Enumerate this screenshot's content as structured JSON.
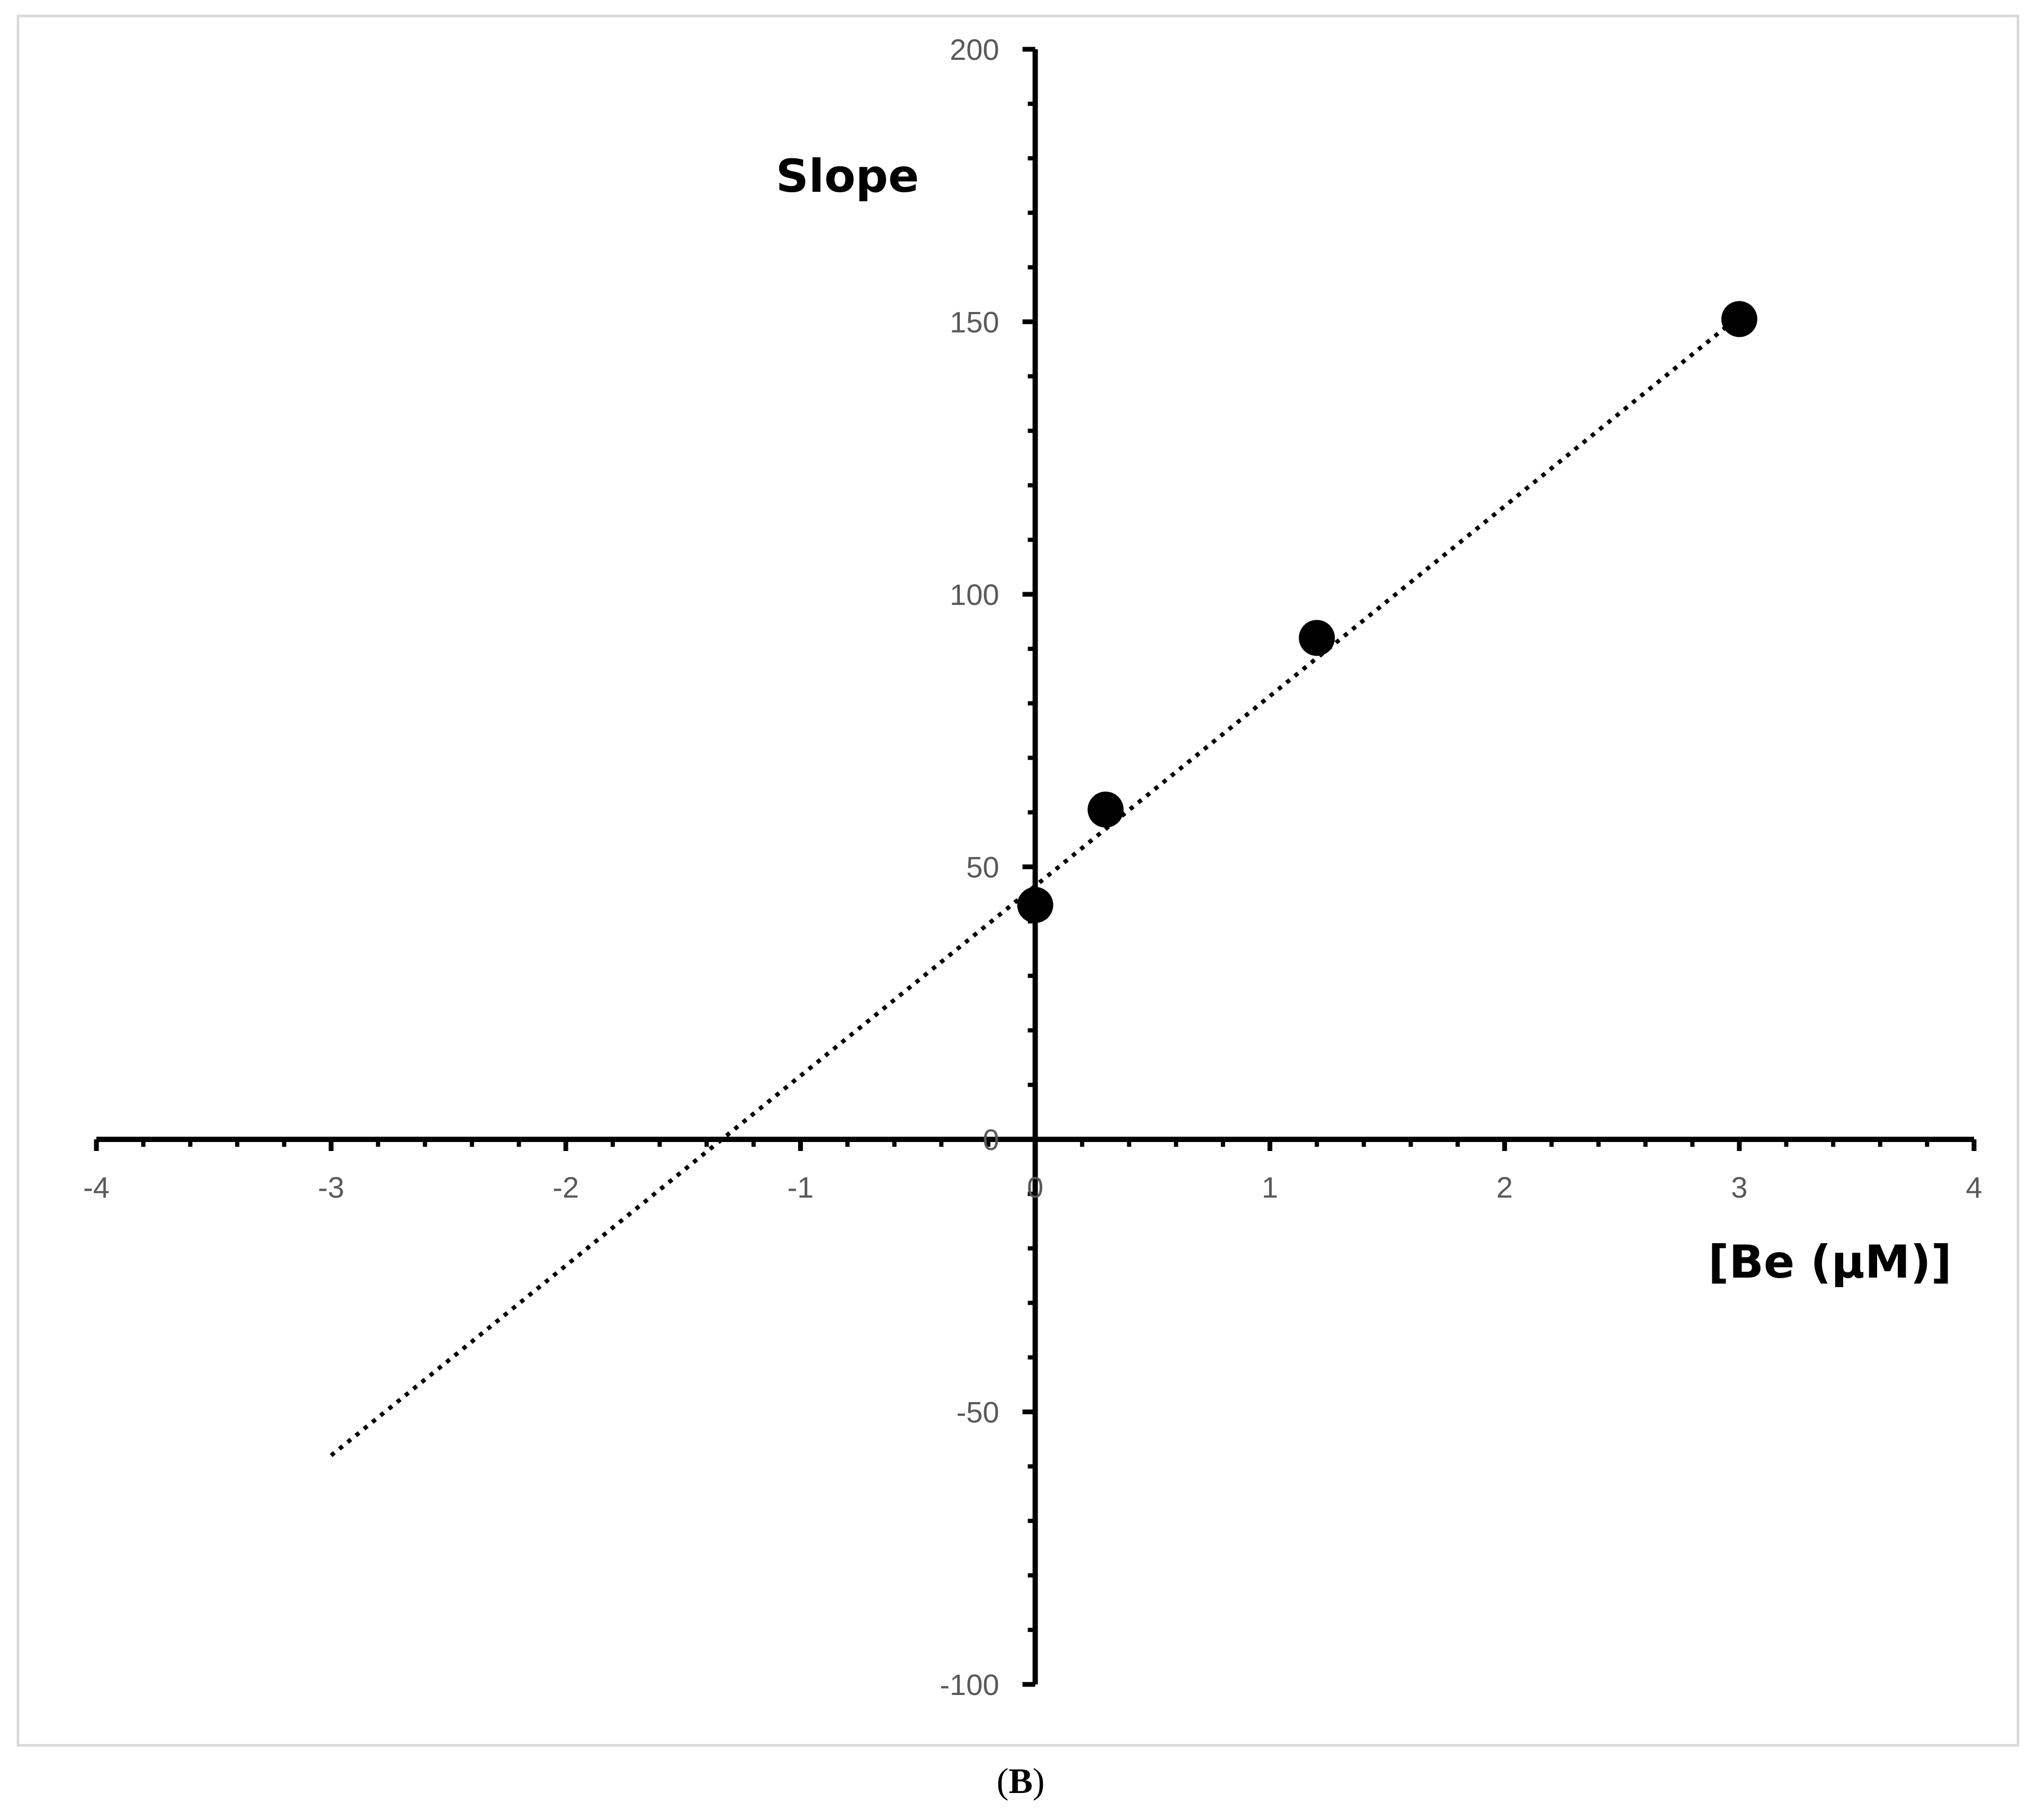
{
  "chart_data": {
    "type": "scatter",
    "xlabel": "[Be (µM)]",
    "ylabel": "Slope",
    "panel_label": "(B)",
    "panel_letter": "B",
    "xlim": [
      -4,
      4
    ],
    "ylim": [
      -100,
      200
    ],
    "x_ticks": [
      "-4",
      "-3",
      "-2",
      "-1",
      "0",
      "1",
      "2",
      "3",
      "4"
    ],
    "y_ticks": [
      "-100",
      "-50",
      "0",
      "50",
      "100",
      "150",
      "200"
    ],
    "grid": false,
    "legend": false,
    "series": [
      {
        "x": [
          0,
          0.3,
          1.2,
          3
        ],
        "y": [
          43,
          60.5,
          92,
          150.5
        ],
        "marker": "filled-circle",
        "color": "#000000"
      }
    ],
    "trendline": {
      "style": "dotted",
      "color": "#000000",
      "x": [
        -3,
        3
      ],
      "y": [
        -58,
        151
      ]
    }
  }
}
